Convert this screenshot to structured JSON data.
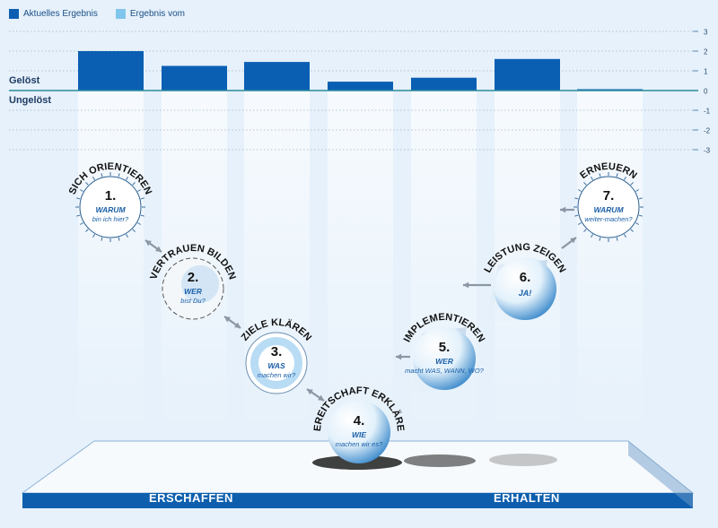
{
  "chart_data": {
    "type": "bar",
    "legend": [
      {
        "label": "Aktuelles Ergebnis",
        "color": "#0b5fb3"
      },
      {
        "label": "Ergebnis vom",
        "color": "#7fc6ec"
      }
    ],
    "y_ticks": [
      "3",
      "2",
      "1",
      "0",
      "-1",
      "-2",
      "-3"
    ],
    "ylim": [
      -3,
      3
    ],
    "side_labels": {
      "solved": "Gelöst",
      "unsolved": "Ungelöst"
    },
    "categories": [
      "1",
      "2",
      "3",
      "4",
      "5",
      "6",
      "7"
    ],
    "series": [
      {
        "name": "Aktuelles Ergebnis",
        "values": [
          2.0,
          1.25,
          1.45,
          0.45,
          0.65,
          1.6,
          0.05
        ]
      }
    ]
  },
  "stages": [
    {
      "number": "1.",
      "title": "SICH ORIENTIEREN",
      "q_bold": "WARUM",
      "q_rest": "bin ich hier?"
    },
    {
      "number": "2.",
      "title": "VERTRAUEN BILDEN",
      "q_bold": "WER",
      "q_rest": "bist Du?"
    },
    {
      "number": "3.",
      "title": "ZIELE KLÄREN",
      "q_bold": "WAS",
      "q_rest": "machen wir?"
    },
    {
      "number": "4.",
      "title": "BEREITSCHAFT ERKLÄREN",
      "q_bold": "WIE",
      "q_rest": "machen wir es?"
    },
    {
      "number": "5.",
      "title": "IMPLEMENTIEREN",
      "q_bold": "WER",
      "q_rest": "macht WAS, WANN, WO?"
    },
    {
      "number": "6.",
      "title": "LEISTUNG ZEIGEN",
      "q_bold": "",
      "q_rest": "JA!"
    },
    {
      "number": "7.",
      "title": "ERNEUERN",
      "q_bold": "WARUM",
      "q_rest": "weiter-machen?"
    }
  ],
  "footer": {
    "left": "ERSCHAFFEN",
    "right": "ERHALTEN"
  },
  "colors": {
    "accent": "#0b5fb3",
    "footer": "#0d5fae",
    "axis": "#2a8a9b"
  }
}
